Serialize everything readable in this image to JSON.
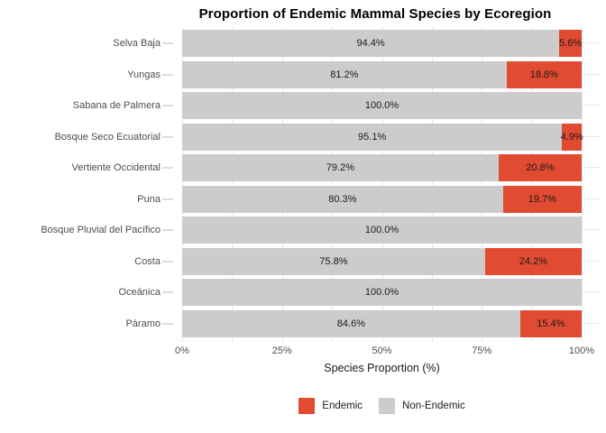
{
  "title": "Proportion of Endemic Mammal Species by Ecoregion",
  "chart_data": {
    "type": "bar",
    "orientation": "horizontal",
    "stacked": true,
    "title": "Proportion of Endemic Mammal Species by Ecoregion",
    "xlabel": "Species Proportion (%)",
    "ylabel": "",
    "xlim": [
      0,
      100
    ],
    "x_ticks": [
      "0%",
      "25%",
      "50%",
      "75%",
      "100%"
    ],
    "grid": true,
    "legend_position": "bottom",
    "categories": [
      "Selva Baja",
      "Yungas",
      "Sabana de Palmera",
      "Bosque Seco Ecuatorial",
      "Vertiente Occidental",
      "Puna",
      "Bosque Pluvial del Pacífico",
      "Costa",
      "Oceánica",
      "Páramo"
    ],
    "series": [
      {
        "name": "Non-Endemic",
        "color": "#cccccc",
        "values": [
          94.4,
          81.2,
          100.0,
          95.1,
          79.2,
          80.3,
          100.0,
          75.8,
          100.0,
          84.6
        ],
        "labels": [
          "94.4%",
          "81.2%",
          "100.0%",
          "95.1%",
          "79.2%",
          "80.3%",
          "100.0%",
          "75.8%",
          "100.0%",
          "84.6%"
        ]
      },
      {
        "name": "Endemic",
        "color": "#e14b32",
        "values": [
          5.6,
          18.8,
          0,
          4.9,
          20.8,
          19.7,
          0,
          24.2,
          0,
          15.4
        ],
        "labels": [
          "5.6%",
          "18.8%",
          "",
          "4.9%",
          "20.8%",
          "19.7%",
          "",
          "24.2%",
          "",
          "15.4%"
        ]
      }
    ],
    "legend": [
      "Endemic",
      "Non-Endemic"
    ]
  },
  "colors": {
    "endemic": "#e14b32",
    "non_endemic": "#cccccc",
    "gridline": "#e7e7e7",
    "axis_text": "#4d4d4d",
    "label_text": "#1a1a1a",
    "background": "#ffffff"
  }
}
